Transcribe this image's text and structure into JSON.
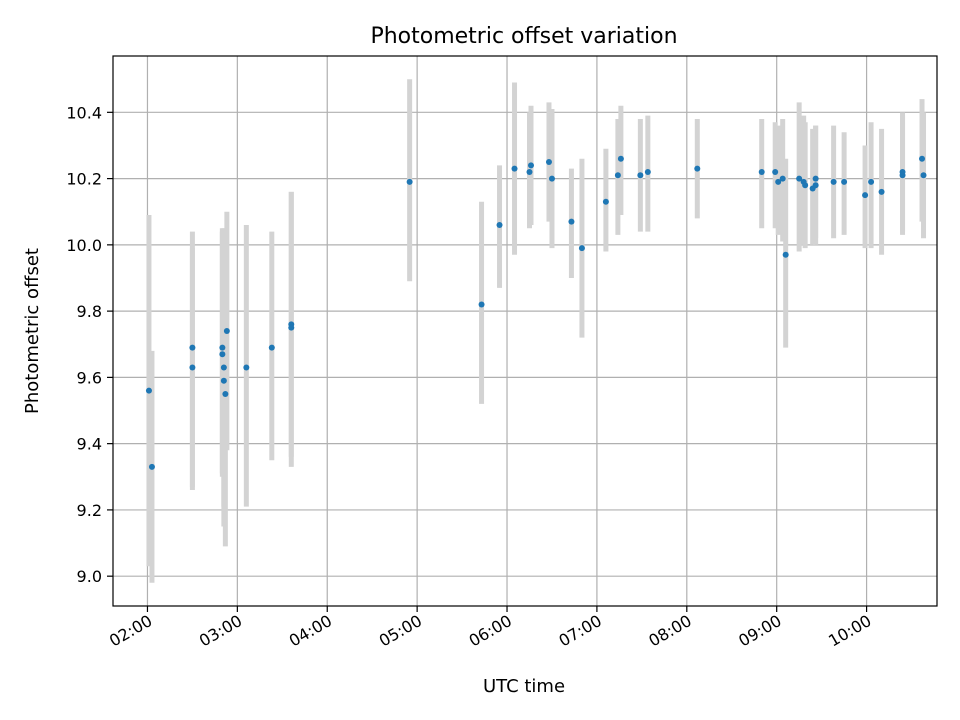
{
  "chart_data": {
    "type": "scatter",
    "title": "Photometric offset variation",
    "xlabel": "UTC time",
    "ylabel": "Photometric offset",
    "x_ticks": [
      "02:00",
      "03:00",
      "04:00",
      "05:00",
      "06:00",
      "07:00",
      "08:00",
      "09:00",
      "10:00"
    ],
    "y_ticks": [
      "9.0",
      "9.2",
      "9.4",
      "9.6",
      "9.8",
      "10.0",
      "10.2",
      "10.4"
    ],
    "xlim": [
      "01:37",
      "10:47"
    ],
    "ylim": [
      8.91,
      10.57
    ],
    "grid": true,
    "colors": {
      "marker": "#1f77b4",
      "errorbar": "#d3d3d3",
      "grid": "#b0b0b0"
    },
    "points": [
      {
        "x": "02:01",
        "y": 9.56,
        "lo": 9.03,
        "hi": 10.09
      },
      {
        "x": "02:03",
        "y": 9.33,
        "lo": 8.98,
        "hi": 9.68
      },
      {
        "x": "02:30",
        "y": 9.69,
        "lo": 9.26,
        "hi": 10.04
      },
      {
        "x": "02:30",
        "y": 9.63,
        "lo": 9.27,
        "hi": 9.99
      },
      {
        "x": "02:50",
        "y": 9.69,
        "lo": 9.31,
        "hi": 10.05
      },
      {
        "x": "02:50",
        "y": 9.67,
        "lo": 9.3,
        "hi": 10.04
      },
      {
        "x": "02:51",
        "y": 9.63,
        "lo": 9.21,
        "hi": 10.05
      },
      {
        "x": "02:51",
        "y": 9.59,
        "lo": 9.15,
        "hi": 10.03
      },
      {
        "x": "02:52",
        "y": 9.55,
        "lo": 9.09,
        "hi": 10.01
      },
      {
        "x": "02:53",
        "y": 9.74,
        "lo": 9.38,
        "hi": 10.1
      },
      {
        "x": "03:06",
        "y": 9.63,
        "lo": 9.21,
        "hi": 10.06
      },
      {
        "x": "03:23",
        "y": 9.69,
        "lo": 9.35,
        "hi": 10.04
      },
      {
        "x": "03:36",
        "y": 9.76,
        "lo": 9.36,
        "hi": 10.16
      },
      {
        "x": "03:36",
        "y": 9.75,
        "lo": 9.33,
        "hi": 10.16
      },
      {
        "x": "04:55",
        "y": 10.19,
        "lo": 9.89,
        "hi": 10.5
      },
      {
        "x": "05:43",
        "y": 9.82,
        "lo": 9.52,
        "hi": 10.13
      },
      {
        "x": "05:55",
        "y": 10.06,
        "lo": 9.87,
        "hi": 10.24
      },
      {
        "x": "06:05",
        "y": 10.23,
        "lo": 9.97,
        "hi": 10.49
      },
      {
        "x": "06:15",
        "y": 10.22,
        "lo": 10.05,
        "hi": 10.4
      },
      {
        "x": "06:16",
        "y": 10.24,
        "lo": 10.06,
        "hi": 10.42
      },
      {
        "x": "06:28",
        "y": 10.25,
        "lo": 10.07,
        "hi": 10.43
      },
      {
        "x": "06:30",
        "y": 10.2,
        "lo": 9.99,
        "hi": 10.41
      },
      {
        "x": "06:43",
        "y": 10.07,
        "lo": 9.9,
        "hi": 10.23
      },
      {
        "x": "06:50",
        "y": 9.99,
        "lo": 9.72,
        "hi": 10.26
      },
      {
        "x": "07:06",
        "y": 10.13,
        "lo": 9.98,
        "hi": 10.29
      },
      {
        "x": "07:14",
        "y": 10.21,
        "lo": 10.03,
        "hi": 10.38
      },
      {
        "x": "07:16",
        "y": 10.26,
        "lo": 10.09,
        "hi": 10.42
      },
      {
        "x": "07:29",
        "y": 10.21,
        "lo": 10.04,
        "hi": 10.38
      },
      {
        "x": "07:34",
        "y": 10.22,
        "lo": 10.04,
        "hi": 10.39
      },
      {
        "x": "08:07",
        "y": 10.23,
        "lo": 10.08,
        "hi": 10.38
      },
      {
        "x": "08:50",
        "y": 10.22,
        "lo": 10.05,
        "hi": 10.38
      },
      {
        "x": "08:59",
        "y": 10.22,
        "lo": 10.05,
        "hi": 10.37
      },
      {
        "x": "09:01",
        "y": 10.19,
        "lo": 10.03,
        "hi": 10.36
      },
      {
        "x": "09:04",
        "y": 10.2,
        "lo": 10.01,
        "hi": 10.38
      },
      {
        "x": "09:06",
        "y": 9.97,
        "lo": 9.69,
        "hi": 10.26
      },
      {
        "x": "09:15",
        "y": 10.2,
        "lo": 9.98,
        "hi": 10.43
      },
      {
        "x": "09:18",
        "y": 10.19,
        "lo": 10.0,
        "hi": 10.39
      },
      {
        "x": "09:19",
        "y": 10.18,
        "lo": 9.99,
        "hi": 10.37
      },
      {
        "x": "09:24",
        "y": 10.17,
        "lo": 10.0,
        "hi": 10.35
      },
      {
        "x": "09:26",
        "y": 10.18,
        "lo": 10.0,
        "hi": 10.36
      },
      {
        "x": "09:26",
        "y": 10.2,
        "lo": 10.02,
        "hi": 10.36
      },
      {
        "x": "09:38",
        "y": 10.19,
        "lo": 10.02,
        "hi": 10.36
      },
      {
        "x": "09:45",
        "y": 10.19,
        "lo": 10.03,
        "hi": 10.34
      },
      {
        "x": "09:59",
        "y": 10.15,
        "lo": 9.99,
        "hi": 10.3
      },
      {
        "x": "10:03",
        "y": 10.19,
        "lo": 9.99,
        "hi": 10.37
      },
      {
        "x": "10:10",
        "y": 10.16,
        "lo": 9.97,
        "hi": 10.35
      },
      {
        "x": "10:24",
        "y": 10.21,
        "lo": 10.03,
        "hi": 10.39
      },
      {
        "x": "10:24",
        "y": 10.22,
        "lo": 10.04,
        "hi": 10.4
      },
      {
        "x": "10:37",
        "y": 10.26,
        "lo": 10.07,
        "hi": 10.44
      },
      {
        "x": "10:38",
        "y": 10.21,
        "lo": 10.02,
        "hi": 10.4
      }
    ]
  }
}
